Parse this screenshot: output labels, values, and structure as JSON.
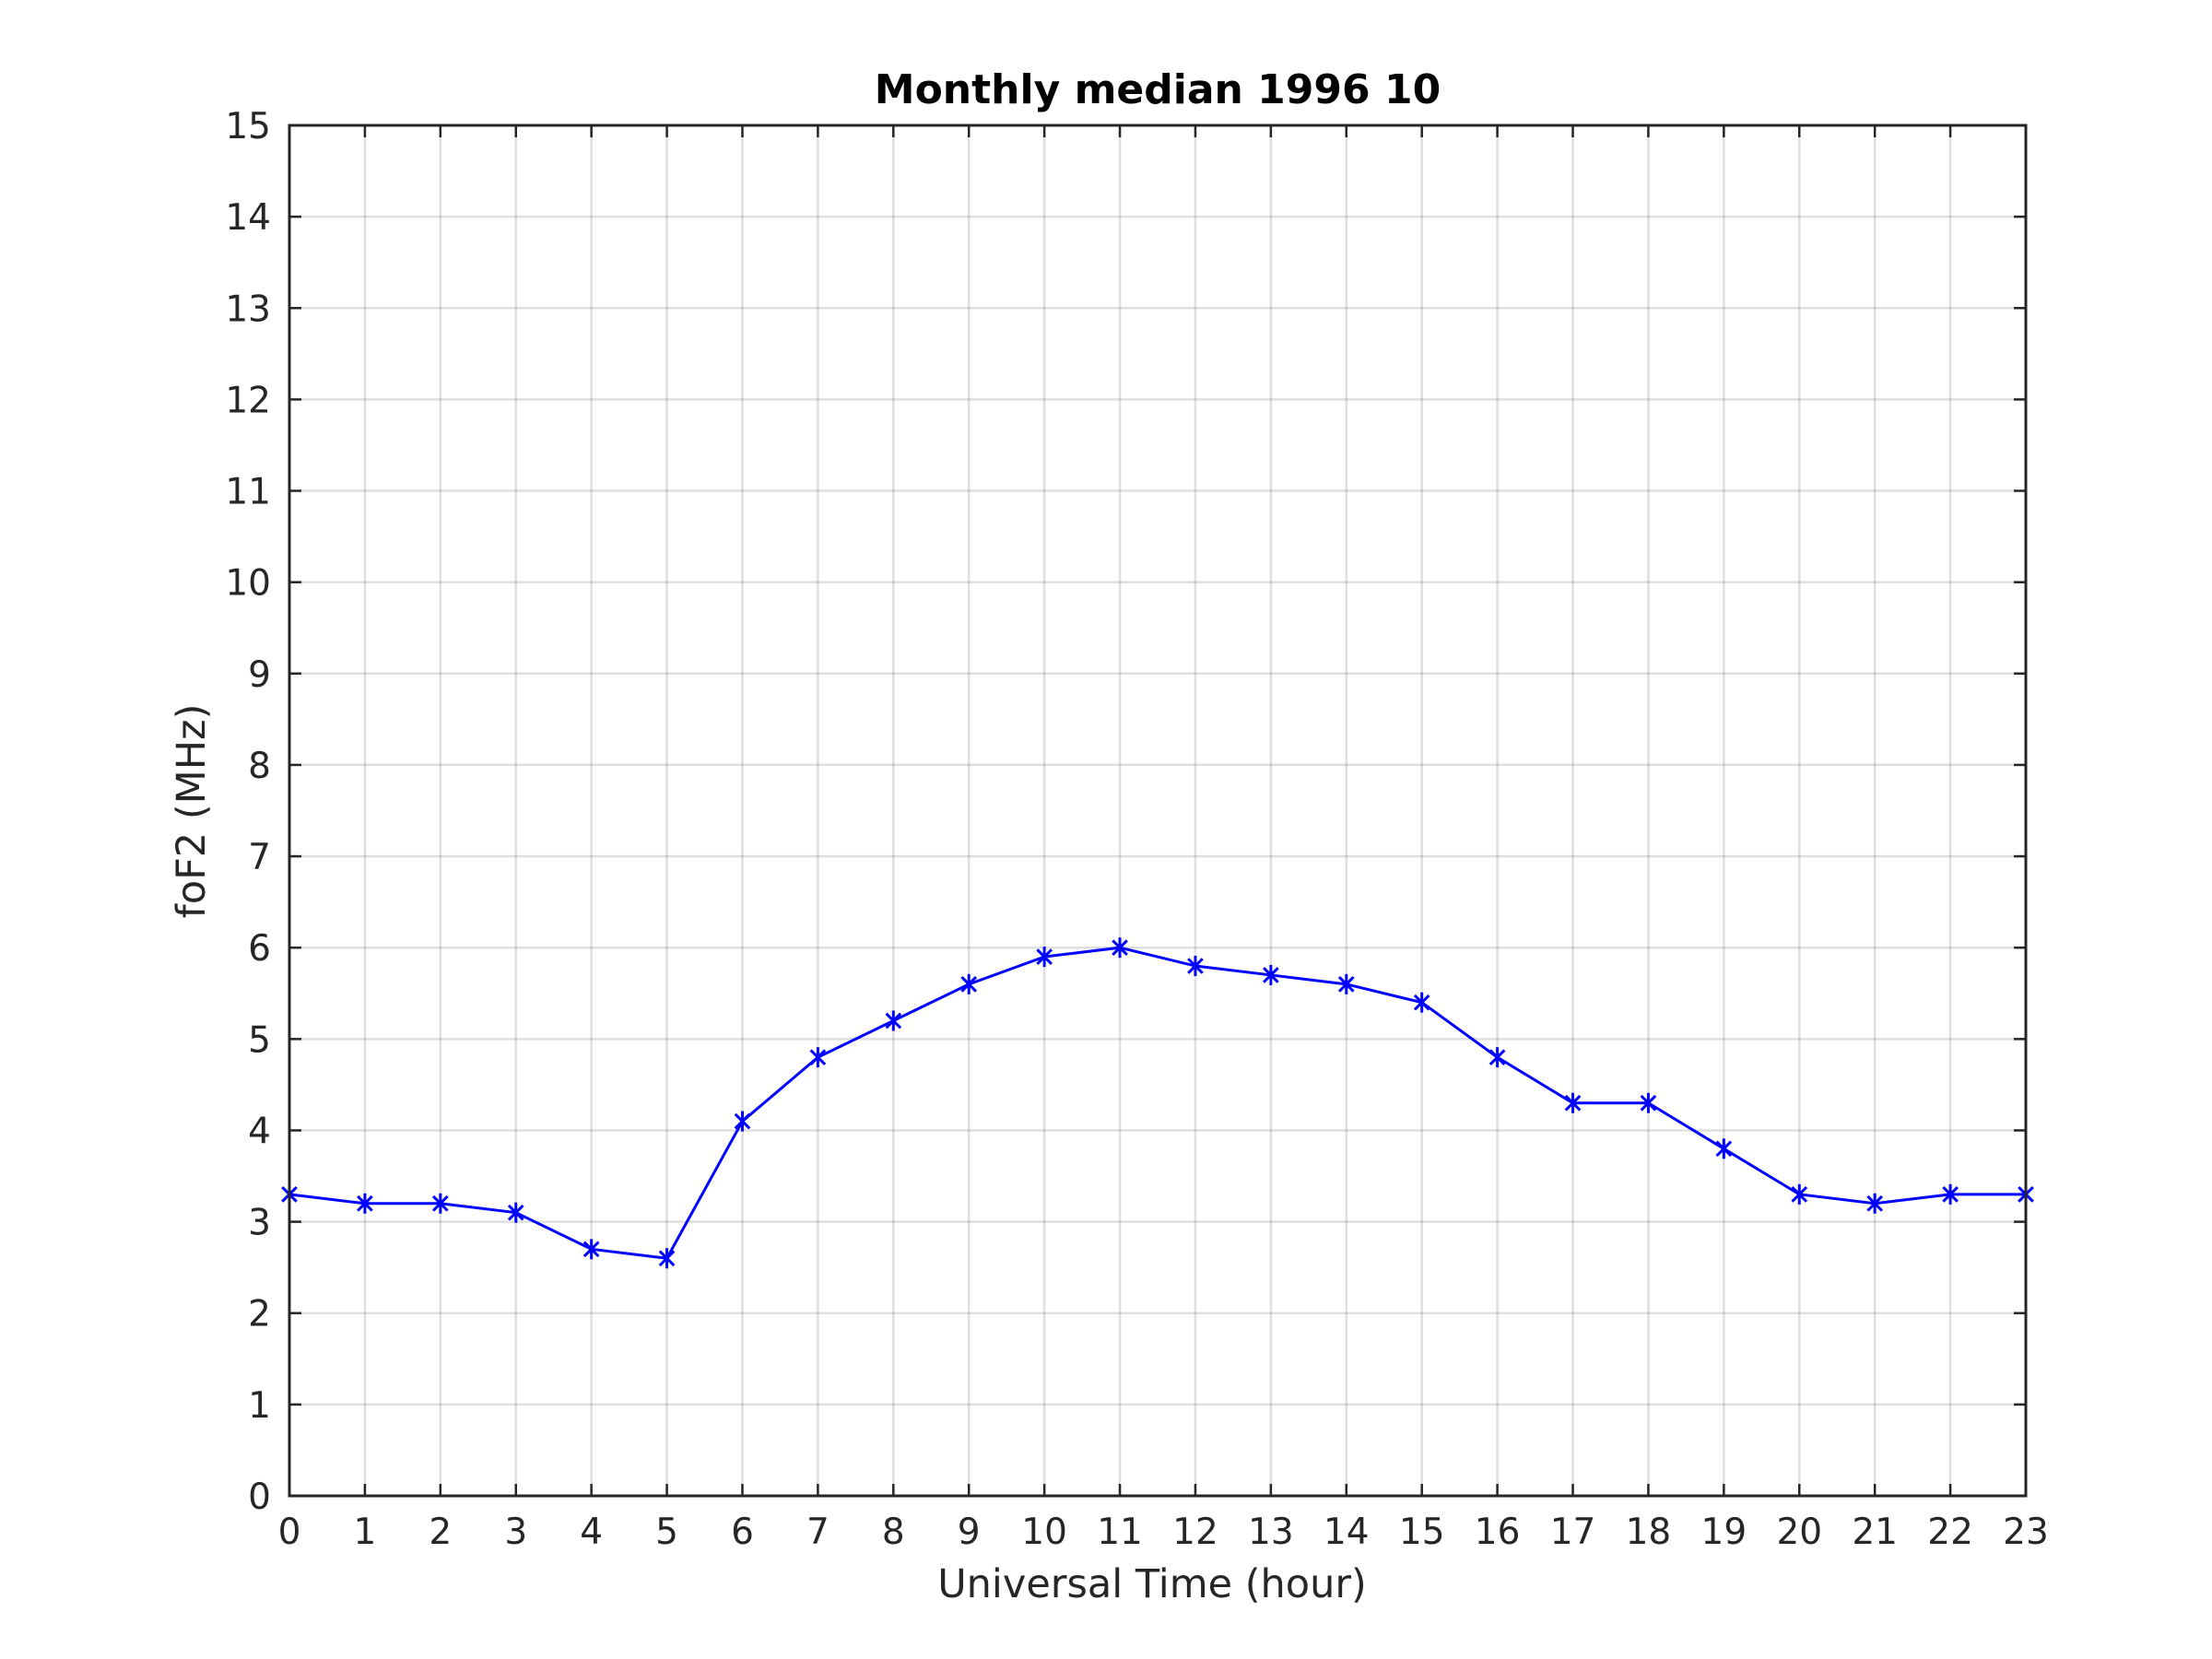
{
  "chart_data": {
    "type": "line",
    "title": "Monthly median 1996 10",
    "xlabel": "Universal Time (hour)",
    "ylabel": "foF2 (MHz)",
    "xlim": [
      0,
      23
    ],
    "ylim": [
      0,
      15
    ],
    "xticks": [
      0,
      1,
      2,
      3,
      4,
      5,
      6,
      7,
      8,
      9,
      10,
      11,
      12,
      13,
      14,
      15,
      16,
      17,
      18,
      19,
      20,
      21,
      22,
      23
    ],
    "yticks": [
      0,
      1,
      2,
      3,
      4,
      5,
      6,
      7,
      8,
      9,
      10,
      11,
      12,
      13,
      14,
      15
    ],
    "grid": true,
    "x": [
      0,
      1,
      2,
      3,
      4,
      5,
      6,
      7,
      8,
      9,
      10,
      11,
      12,
      13,
      14,
      15,
      16,
      17,
      18,
      19,
      20,
      21,
      22,
      23
    ],
    "series": [
      {
        "color": "#0000ff",
        "marker": "asterisk",
        "values": [
          3.3,
          3.2,
          3.2,
          3.1,
          2.7,
          2.6,
          4.1,
          4.8,
          5.2,
          5.6,
          5.9,
          6.0,
          5.8,
          5.7,
          5.6,
          5.4,
          4.8,
          4.3,
          4.3,
          3.8,
          3.3,
          3.2,
          3.3,
          3.3
        ]
      }
    ]
  }
}
